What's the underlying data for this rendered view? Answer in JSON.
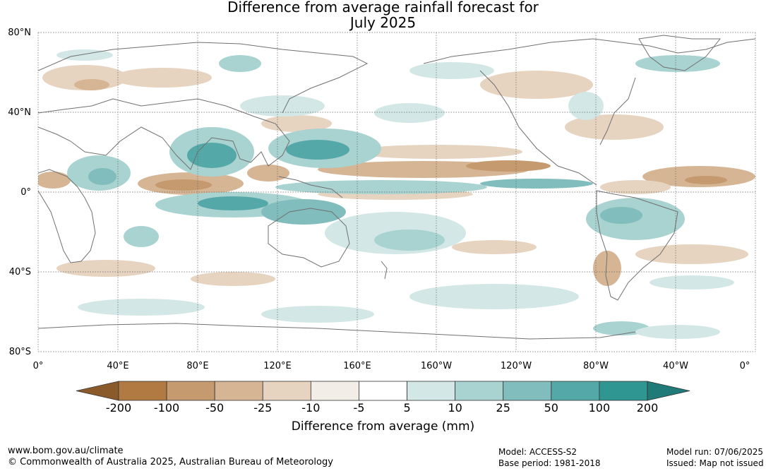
{
  "title": {
    "line1": "Difference from average rainfall forecast for",
    "line2": "July 2025"
  },
  "axes": {
    "lat_labels": [
      "80°N",
      "40°N",
      "0°",
      "40°S",
      "80°S"
    ],
    "lon_labels": [
      "0°",
      "40°E",
      "80°E",
      "120°E",
      "160°E",
      "160°W",
      "120°W",
      "80°W",
      "40°W",
      "0°"
    ]
  },
  "legend": {
    "title": "Difference from average (mm)",
    "ticks": [
      "-200",
      "-100",
      "-50",
      "-25",
      "-10",
      "-5",
      "5",
      "10",
      "25",
      "50",
      "100",
      "200"
    ],
    "colors": [
      "#8a5a2b",
      "#b07a42",
      "#c59a6e",
      "#d6b594",
      "#e6d3c0",
      "#f3ede8",
      "#ffffff",
      "#d3e8e6",
      "#a9d3d1",
      "#80bdbc",
      "#55a8a8",
      "#2f9692",
      "#1f7a78"
    ]
  },
  "footer": {
    "url": "www.bom.gov.au/climate",
    "copyright": "© Commonwealth of Australia 2025, Australian Bureau of Meteorology",
    "model": "Model: ACCESS-S2",
    "base_period": "Base period: 1981-2018",
    "model_run": "Model run: 07/06/2025",
    "issued": "Issued: Map not issued"
  }
}
